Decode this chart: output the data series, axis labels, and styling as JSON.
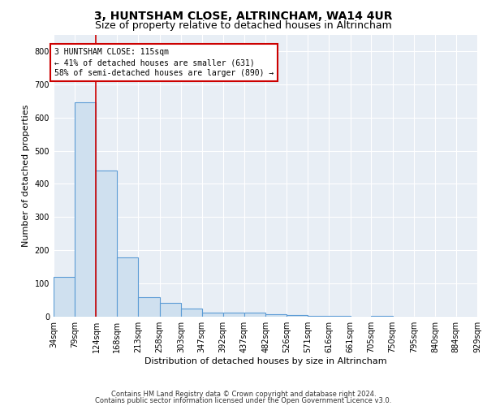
{
  "title1": "3, HUNTSHAM CLOSE, ALTRINCHAM, WA14 4UR",
  "title2": "Size of property relative to detached houses in Altrincham",
  "xlabel": "Distribution of detached houses by size in Altrincham",
  "ylabel": "Number of detached properties",
  "footnote1": "Contains HM Land Registry data © Crown copyright and database right 2024.",
  "footnote2": "Contains public sector information licensed under the Open Government Licence v3.0.",
  "bar_edges": [
    34,
    79,
    124,
    168,
    213,
    258,
    303,
    347,
    392,
    437,
    482,
    526,
    571,
    616,
    661,
    705,
    750,
    795,
    840,
    884,
    929
  ],
  "bar_heights": [
    120,
    645,
    440,
    178,
    58,
    42,
    25,
    12,
    13,
    12,
    8,
    4,
    3,
    3,
    0,
    3,
    0,
    0,
    0,
    0
  ],
  "bar_facecolor": "#cfe0ef",
  "bar_edgecolor": "#5b9bd5",
  "bar_linewidth": 0.8,
  "vline_x": 124,
  "vline_color": "#cc0000",
  "vline_linewidth": 1.2,
  "annotation_line1": "3 HUNTSHAM CLOSE: 115sqm",
  "annotation_line2": "← 41% of detached houses are smaller (631)",
  "annotation_line3": "58% of semi-detached houses are larger (890) →",
  "annotation_box_color": "#cc0000",
  "ylim": [
    0,
    850
  ],
  "yticks": [
    0,
    100,
    200,
    300,
    400,
    500,
    600,
    700,
    800
  ],
  "background_color": "#e8eef5",
  "grid_color": "#ffffff",
  "title1_fontsize": 10,
  "title2_fontsize": 9,
  "xlabel_fontsize": 8,
  "ylabel_fontsize": 8,
  "tick_fontsize": 7,
  "footnote_fontsize": 6
}
